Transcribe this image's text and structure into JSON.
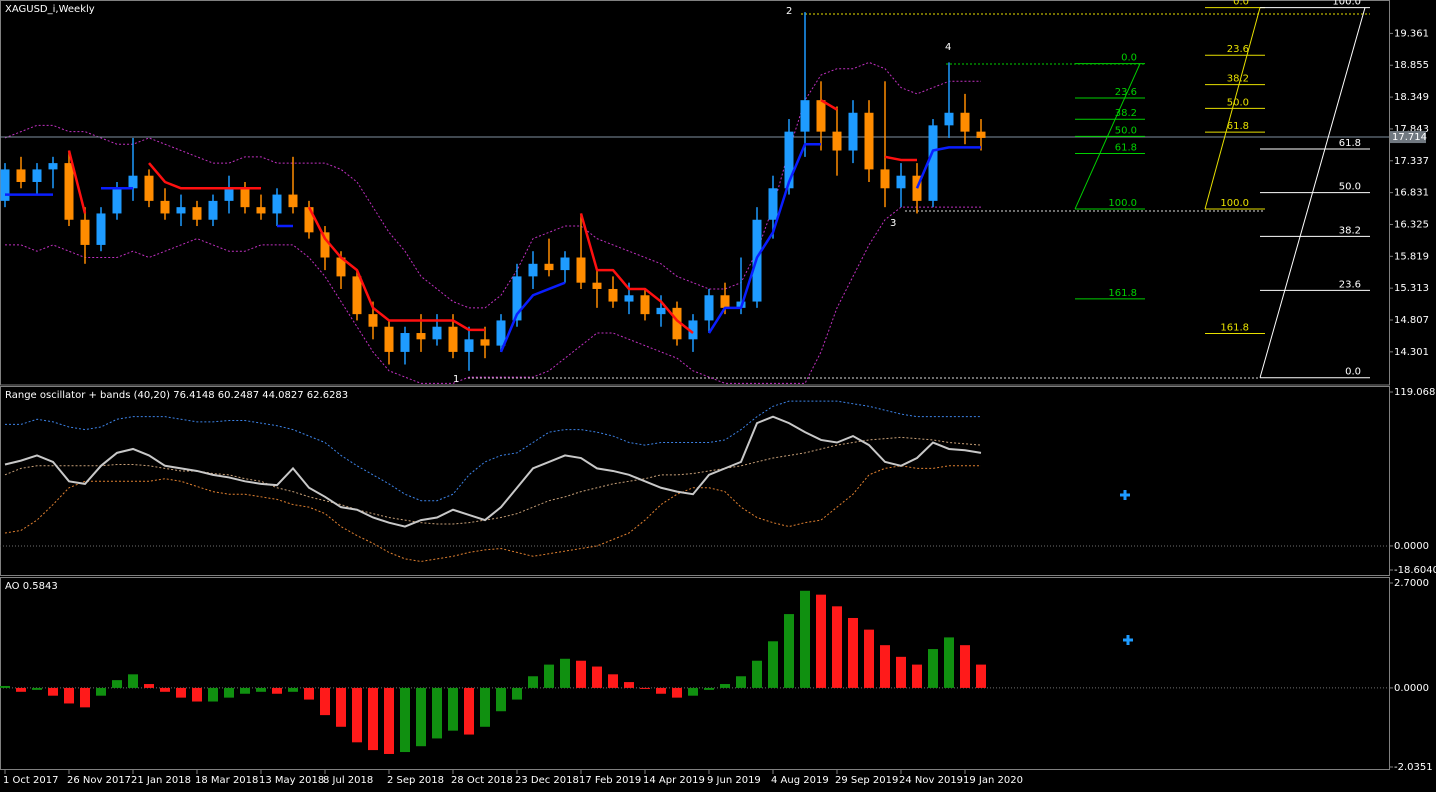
{
  "chart_data": [
    {
      "type": "candlestick",
      "title": "XAGUSD_i,Weekly",
      "categories": [
        "1 Oct 2017",
        null,
        null,
        null,
        "26 Nov 2017",
        null,
        null,
        null,
        "21 Jan 2018",
        null,
        null,
        null,
        "18 Mar 2018",
        null,
        null,
        null,
        "13 May 2018",
        null,
        null,
        null,
        "8 Jul 2018",
        null,
        null,
        null,
        "2 Sep 2018",
        null,
        null,
        null,
        "28 Oct 2018",
        null,
        null,
        null,
        "23 Dec 2018",
        null,
        null,
        null,
        "17 Feb 2019",
        null,
        null,
        null,
        "14 Apr 2019",
        null,
        null,
        null,
        "9 Jun 2019",
        null,
        null,
        null,
        "4 Aug 2019",
        null,
        null,
        null,
        "29 Sep 2019",
        null,
        null,
        null,
        "24 Nov 2019",
        null,
        null,
        null,
        "19 Jan 2020",
        null
      ],
      "ohlc": [
        [
          16.7,
          17.3,
          16.6,
          17.2
        ],
        [
          17.2,
          17.4,
          16.9,
          17.0
        ],
        [
          17.0,
          17.3,
          16.8,
          17.2
        ],
        [
          17.2,
          17.4,
          16.9,
          17.3
        ],
        [
          17.3,
          17.5,
          16.3,
          16.4
        ],
        [
          16.4,
          16.6,
          15.7,
          16.0
        ],
        [
          16.0,
          16.6,
          15.9,
          16.5
        ],
        [
          16.5,
          17.0,
          16.4,
          16.9
        ],
        [
          16.9,
          17.7,
          16.7,
          17.1
        ],
        [
          17.1,
          17.2,
          16.6,
          16.7
        ],
        [
          16.7,
          16.9,
          16.4,
          16.5
        ],
        [
          16.5,
          16.8,
          16.3,
          16.6
        ],
        [
          16.6,
          16.7,
          16.3,
          16.4
        ],
        [
          16.4,
          16.8,
          16.3,
          16.7
        ],
        [
          16.7,
          17.1,
          16.5,
          16.9
        ],
        [
          16.9,
          17.0,
          16.5,
          16.6
        ],
        [
          16.6,
          16.8,
          16.4,
          16.5
        ],
        [
          16.5,
          16.9,
          16.3,
          16.8
        ],
        [
          16.8,
          17.4,
          16.5,
          16.6
        ],
        [
          16.6,
          16.7,
          16.1,
          16.2
        ],
        [
          16.2,
          16.3,
          15.6,
          15.8
        ],
        [
          15.8,
          15.9,
          15.3,
          15.5
        ],
        [
          15.5,
          15.6,
          14.8,
          14.9
        ],
        [
          14.9,
          15.1,
          14.5,
          14.7
        ],
        [
          14.7,
          14.8,
          14.1,
          14.3
        ],
        [
          14.3,
          14.7,
          14.1,
          14.6
        ],
        [
          14.6,
          14.9,
          14.3,
          14.5
        ],
        [
          14.5,
          14.9,
          14.4,
          14.7
        ],
        [
          14.7,
          14.9,
          14.2,
          14.3
        ],
        [
          14.3,
          14.7,
          14.0,
          14.5
        ],
        [
          14.5,
          14.7,
          14.2,
          14.4
        ],
        [
          14.4,
          14.9,
          14.3,
          14.8
        ],
        [
          14.8,
          15.7,
          14.7,
          15.5
        ],
        [
          15.5,
          15.9,
          15.3,
          15.7
        ],
        [
          15.7,
          16.1,
          15.5,
          15.6
        ],
        [
          15.6,
          15.9,
          15.4,
          15.8
        ],
        [
          15.8,
          16.5,
          15.3,
          15.4
        ],
        [
          15.4,
          15.6,
          15.0,
          15.3
        ],
        [
          15.3,
          15.5,
          15.0,
          15.1
        ],
        [
          15.1,
          15.4,
          14.9,
          15.2
        ],
        [
          15.2,
          15.3,
          14.8,
          14.9
        ],
        [
          14.9,
          15.2,
          14.7,
          15.0
        ],
        [
          15.0,
          15.1,
          14.4,
          14.5
        ],
        [
          14.5,
          14.9,
          14.3,
          14.8
        ],
        [
          14.8,
          15.3,
          14.6,
          15.2
        ],
        [
          15.2,
          15.4,
          14.9,
          15.0
        ],
        [
          15.0,
          15.8,
          14.9,
          15.1
        ],
        [
          15.1,
          16.6,
          15.0,
          16.4
        ],
        [
          16.4,
          17.1,
          16.1,
          16.9
        ],
        [
          16.9,
          18.0,
          16.8,
          17.8
        ],
        [
          17.8,
          19.7,
          17.4,
          18.3
        ],
        [
          18.3,
          18.6,
          17.5,
          17.8
        ],
        [
          17.8,
          18.2,
          17.1,
          17.5
        ],
        [
          17.5,
          18.3,
          17.3,
          18.1
        ],
        [
          18.1,
          18.3,
          17.0,
          17.2
        ],
        [
          17.2,
          18.6,
          16.6,
          16.9
        ],
        [
          16.9,
          17.3,
          16.6,
          17.1
        ],
        [
          17.1,
          17.3,
          16.5,
          16.7
        ],
        [
          16.7,
          18.0,
          16.6,
          17.9
        ],
        [
          17.9,
          18.9,
          17.7,
          18.1
        ],
        [
          18.1,
          18.4,
          17.6,
          17.8
        ],
        [
          17.8,
          18.0,
          17.5,
          17.7
        ]
      ],
      "up_color": "#1e9bff",
      "down_color": "#ff8c00",
      "bands": {
        "color": "#c030c0",
        "upper": [
          17.7,
          17.8,
          17.9,
          17.9,
          17.8,
          17.8,
          17.7,
          17.6,
          17.6,
          17.7,
          17.6,
          17.5,
          17.4,
          17.3,
          17.3,
          17.4,
          17.4,
          17.3,
          17.3,
          17.3,
          17.3,
          17.2,
          17.0,
          16.6,
          16.2,
          15.9,
          15.5,
          15.3,
          15.1,
          15.0,
          15.0,
          15.2,
          15.6,
          16.1,
          16.2,
          16.3,
          16.3,
          16.1,
          16.0,
          15.9,
          15.8,
          15.7,
          15.5,
          15.4,
          15.3,
          15.3,
          15.4,
          15.9,
          16.6,
          17.5,
          18.3,
          18.7,
          18.8,
          18.8,
          18.9,
          18.8,
          18.5,
          18.4,
          18.5,
          18.6,
          18.6,
          18.6
        ],
        "lower": [
          16.0,
          16.0,
          15.9,
          16.0,
          15.9,
          15.8,
          15.8,
          15.8,
          15.9,
          15.8,
          15.9,
          16.0,
          16.1,
          16.0,
          15.9,
          15.9,
          16.0,
          16.0,
          16.0,
          15.8,
          15.5,
          15.1,
          14.7,
          14.3,
          14.0,
          13.9,
          13.8,
          13.8,
          13.8,
          13.9,
          13.9,
          13.9,
          13.9,
          13.9,
          14.0,
          14.2,
          14.4,
          14.6,
          14.6,
          14.5,
          14.4,
          14.3,
          14.2,
          14.0,
          13.9,
          13.8,
          13.8,
          13.8,
          13.8,
          13.8,
          13.8,
          14.3,
          15.0,
          15.5,
          16.0,
          16.4,
          16.6,
          16.6,
          16.6,
          16.6,
          16.6,
          16.6
        ]
      },
      "stop_up": {
        "color": "#0a1eff",
        "values": [
          16.8,
          16.8,
          16.8,
          16.8,
          null,
          null,
          16.9,
          16.9,
          16.9,
          null,
          null,
          null,
          null,
          null,
          null,
          null,
          null,
          16.3,
          16.3,
          null,
          null,
          null,
          null,
          null,
          null,
          null,
          null,
          null,
          null,
          null,
          null,
          14.3,
          14.9,
          15.2,
          15.3,
          15.4,
          null,
          null,
          null,
          null,
          null,
          null,
          null,
          null,
          14.6,
          15.0,
          15.0,
          15.8,
          16.2,
          17.0,
          17.6,
          17.6,
          null,
          null,
          16.9,
          null,
          null,
          16.9,
          17.5,
          17.55,
          17.55,
          17.55
        ]
      },
      "stop_down": {
        "color": "#ff1010",
        "values": [
          null,
          null,
          null,
          null,
          17.5,
          16.5,
          null,
          null,
          null,
          17.3,
          17.0,
          16.9,
          16.9,
          16.9,
          16.9,
          16.9,
          16.9,
          null,
          null,
          16.6,
          16.1,
          15.8,
          15.6,
          15.0,
          14.8,
          14.8,
          14.8,
          14.8,
          14.8,
          14.65,
          14.65,
          null,
          null,
          null,
          null,
          null,
          16.5,
          15.6,
          15.6,
          15.3,
          15.3,
          15.1,
          14.8,
          14.6,
          null,
          null,
          null,
          null,
          null,
          null,
          null,
          18.3,
          18.15,
          null,
          null,
          17.4,
          17.35,
          17.35,
          null,
          null,
          null,
          null
        ]
      },
      "ylim": [
        13.79,
        19.86
      ],
      "yticks": [
        19.361,
        18.855,
        18.349,
        17.843,
        17.337,
        16.831,
        16.325,
        15.819,
        15.313,
        14.807,
        14.301
      ],
      "last_price": 17.714,
      "waves": [
        "1",
        "2",
        "3",
        "4"
      ],
      "fibs": [
        {
          "color": "#00d000",
          "base": "high",
          "high": 18.88,
          "low": 16.57,
          "levels": [
            {
              "value": 0,
              "label": "0.0"
            },
            23.6,
            38.2,
            {
              "value": 50,
              "label": "50.0"
            },
            61.8,
            {
              "value": 100,
              "label": "100.0"
            },
            161.8
          ]
        },
        {
          "color": "#e8e000",
          "base": "high",
          "high": 19.77,
          "low": 16.57,
          "levels": [
            {
              "value": 0,
              "label": "0.0"
            },
            23.6,
            38.2,
            {
              "value": 50,
              "label": "50.0"
            },
            61.8,
            {
              "value": 100,
              "label": "100.0"
            },
            161.8
          ]
        },
        {
          "color": "#ffffff",
          "base": "low",
          "high": 19.77,
          "low": 13.89,
          "levels": [
            {
              "value": 0,
              "label": "0.0"
            },
            23.6,
            38.2,
            {
              "value": 50,
              "label": "50.0"
            },
            61.8,
            {
              "value": 100,
              "label": "100.0"
            }
          ]
        }
      ]
    },
    {
      "type": "oscillator",
      "title": "Range oscillator + bands (40,20) 76.4148 60.2487 44.0827 62.6283",
      "line": {
        "color": "#c8c8c8",
        "values": [
          63,
          66,
          70,
          65,
          50,
          48,
          62,
          72,
          75,
          70,
          62,
          60,
          58,
          55,
          53,
          50,
          48,
          47,
          60,
          45,
          38,
          30,
          28,
          22,
          18,
          15,
          20,
          22,
          28,
          24,
          20,
          30,
          45,
          60,
          65,
          70,
          68,
          60,
          58,
          55,
          50,
          45,
          42,
          40,
          55,
          60,
          65,
          95,
          100,
          95,
          88,
          82,
          80,
          85,
          78,
          65,
          62,
          68,
          80,
          75,
          74,
          72
        ]
      },
      "upper": {
        "color": "#3c82e6",
        "values": [
          94,
          94,
          98,
          96,
          92,
          90,
          92,
          98,
          100,
          100,
          100,
          98,
          96,
          96,
          97,
          97,
          95,
          93,
          90,
          85,
          80,
          70,
          62,
          55,
          48,
          40,
          35,
          35,
          40,
          55,
          65,
          70,
          72,
          80,
          88,
          90,
          90,
          88,
          85,
          80,
          78,
          80,
          80,
          80,
          80,
          82,
          90,
          100,
          108,
          112,
          112,
          112,
          112,
          110,
          108,
          105,
          102,
          100,
          100,
          100,
          100,
          100
        ]
      },
      "middle": {
        "color": "#c8a078",
        "values": [
          55,
          60,
          62,
          62,
          62,
          62,
          62,
          63,
          63,
          62,
          60,
          58,
          58,
          56,
          55,
          52,
          50,
          45,
          42,
          38,
          35,
          32,
          28,
          25,
          22,
          20,
          18,
          17,
          17,
          18,
          20,
          22,
          25,
          30,
          35,
          38,
          42,
          45,
          48,
          50,
          52,
          55,
          55,
          56,
          58,
          60,
          62,
          65,
          68,
          70,
          72,
          75,
          78,
          80,
          82,
          83,
          84,
          83,
          82,
          80,
          79,
          78
        ]
      },
      "lower": {
        "color": "#e08030",
        "values": [
          10,
          12,
          20,
          32,
          45,
          50,
          50,
          50,
          50,
          50,
          52,
          50,
          46,
          42,
          40,
          40,
          38,
          36,
          32,
          30,
          25,
          15,
          8,
          2,
          -5,
          -10,
          -12,
          -10,
          -8,
          -5,
          -3,
          -2,
          -5,
          -8,
          -6,
          -4,
          -2,
          0,
          5,
          10,
          20,
          32,
          40,
          45,
          45,
          42,
          30,
          22,
          18,
          15,
          18,
          20,
          30,
          40,
          55,
          60,
          62,
          60,
          60,
          62,
          62,
          62
        ]
      },
      "ylim": [
        -18.604,
        119.0689
      ],
      "yticks": [
        119.0689,
        {
          "value": 0,
          "label": "0.0000"
        },
        {
          "value": -18.604,
          "label": "-18.6040"
        }
      ]
    },
    {
      "type": "histogram",
      "title": "AO 0.5843",
      "values": [
        0.05,
        -0.1,
        -0.05,
        -0.2,
        -0.4,
        -0.5,
        -0.2,
        0.2,
        0.35,
        0.1,
        -0.1,
        -0.25,
        -0.35,
        -0.35,
        -0.25,
        -0.15,
        -0.1,
        -0.15,
        -0.1,
        -0.3,
        -0.7,
        -1.0,
        -1.4,
        -1.6,
        -1.7,
        -1.65,
        -1.5,
        -1.3,
        -1.1,
        -1.2,
        -1.0,
        -0.6,
        -0.3,
        0.3,
        0.6,
        0.75,
        0.7,
        0.55,
        0.35,
        0.15,
        0.0,
        -0.15,
        -0.25,
        -0.2,
        -0.05,
        0.1,
        0.3,
        0.7,
        1.2,
        1.9,
        2.5,
        2.4,
        2.1,
        1.8,
        1.5,
        1.1,
        0.8,
        0.6,
        1.0,
        1.3,
        1.1,
        0.6
      ],
      "up_color": "#109010",
      "down_color": "#ff1a1a",
      "ylim": [
        -2.0351,
        2.7
      ],
      "yticks": [
        {
          "value": 2.7,
          "label": "2.7000"
        },
        {
          "value": 0,
          "label": "0.0000"
        },
        {
          "value": -2.0351,
          "label": "-2.0351"
        }
      ]
    }
  ]
}
